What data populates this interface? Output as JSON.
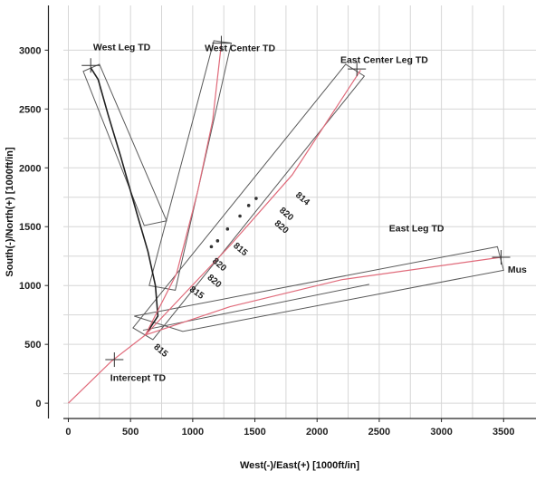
{
  "chart_data": {
    "type": "line",
    "xlabel": "West(-)/East(+) [1000ft/in]",
    "ylabel": "South(-)/North(+) [1000ft/in]",
    "xlim": [
      -40,
      3760
    ],
    "ylim": [
      -130,
      3380
    ],
    "xticks": [
      0,
      500,
      1000,
      1500,
      2000,
      2500,
      3000,
      3500
    ],
    "yticks": [
      0,
      500,
      1000,
      1500,
      2000,
      2500,
      3000
    ],
    "grid": true,
    "series": [
      {
        "key": "main",
        "color": "#e06a7a",
        "points": [
          [
            0,
            0
          ],
          [
            350,
            360
          ],
          [
            620,
            580
          ]
        ]
      },
      {
        "key": "west-leg",
        "color": "#202020",
        "points": [
          [
            620,
            580
          ],
          [
            720,
            740
          ],
          [
            700,
            1000
          ],
          [
            640,
            1290
          ],
          [
            560,
            1580
          ],
          [
            420,
            2100
          ],
          [
            320,
            2450
          ],
          [
            240,
            2750
          ],
          [
            180,
            2850
          ]
        ]
      },
      {
        "key": "west-center",
        "color": "#e06a7a",
        "points": [
          [
            620,
            580
          ],
          [
            870,
            1100
          ],
          [
            1040,
            1800
          ],
          [
            1160,
            2400
          ],
          [
            1230,
            3050
          ]
        ]
      },
      {
        "key": "east-center",
        "color": "#e06a7a",
        "points": [
          [
            620,
            580
          ],
          [
            1300,
            1340
          ],
          [
            1800,
            1940
          ],
          [
            2350,
            2830
          ]
        ]
      },
      {
        "key": "east-leg",
        "color": "#e06a7a",
        "points": [
          [
            620,
            580
          ],
          [
            1300,
            820
          ],
          [
            2200,
            1050
          ],
          [
            3480,
            1240
          ]
        ]
      }
    ],
    "markers": [
      {
        "key": "intercept",
        "x": 370,
        "y": 370
      },
      {
        "key": "west-leg-td",
        "x": 180,
        "y": 2870
      },
      {
        "key": "west-center-td",
        "x": 1230,
        "y": 3060
      },
      {
        "key": "east-center-td",
        "x": 2320,
        "y": 2840
      },
      {
        "key": "mus",
        "x": 3480,
        "y": 1240
      }
    ],
    "corridors": [
      {
        "key": "west-leg-box",
        "points": [
          [
            120,
            2820
          ],
          [
            250,
            2880
          ],
          [
            790,
            1550
          ],
          [
            610,
            1510
          ]
        ]
      },
      {
        "key": "west-center-box",
        "points": [
          [
            650,
            1000
          ],
          [
            1170,
            3080
          ],
          [
            1310,
            3060
          ],
          [
            860,
            960
          ]
        ]
      },
      {
        "key": "east-center-box",
        "points": [
          [
            520,
            640
          ],
          [
            2230,
            2880
          ],
          [
            2380,
            2780
          ],
          [
            680,
            540
          ]
        ]
      },
      {
        "key": "east-leg-box",
        "points": [
          [
            530,
            740
          ],
          [
            3450,
            1330
          ],
          [
            3500,
            1130
          ],
          [
            920,
            610
          ]
        ]
      },
      {
        "key": "east-leg-inner",
        "points": [
          [
            600,
            620
          ],
          [
            2420,
            1010
          ]
        ]
      }
    ],
    "survey_points": [
      [
        1150,
        1330
      ],
      [
        1200,
        1380
      ],
      [
        1280,
        1480
      ],
      [
        1380,
        1590
      ],
      [
        1450,
        1680
      ],
      [
        1510,
        1740
      ]
    ],
    "annotations": [
      {
        "key": "west-leg-td",
        "text": "West Leg TD",
        "x": 430,
        "y": 3000
      },
      {
        "key": "west-center-td",
        "text": "West Center TD",
        "x": 1380,
        "y": 2990
      },
      {
        "key": "east-center-td",
        "text": "East Center Leg TD",
        "x": 2540,
        "y": 2890
      },
      {
        "key": "east-leg-td",
        "text": "East Leg TD",
        "x": 2800,
        "y": 1460
      },
      {
        "key": "mus",
        "text": "Mus",
        "x": 3610,
        "y": 1110
      },
      {
        "key": "intercept-td",
        "text": "Intercept TD",
        "x": 560,
        "y": 190
      }
    ],
    "depth_labels": [
      {
        "text": "814",
        "x": 1870,
        "y": 1720,
        "rot": 40
      },
      {
        "text": "820",
        "x": 1740,
        "y": 1590,
        "rot": 40
      },
      {
        "text": "820",
        "x": 1700,
        "y": 1480,
        "rot": 40
      },
      {
        "text": "815",
        "x": 1370,
        "y": 1290,
        "rot": 40
      },
      {
        "text": "820",
        "x": 1200,
        "y": 1160,
        "rot": 40
      },
      {
        "text": "820",
        "x": 1160,
        "y": 1020,
        "rot": 40
      },
      {
        "text": "815",
        "x": 1020,
        "y": 920,
        "rot": 35
      },
      {
        "text": "815",
        "x": 730,
        "y": 430,
        "rot": 40
      }
    ]
  }
}
